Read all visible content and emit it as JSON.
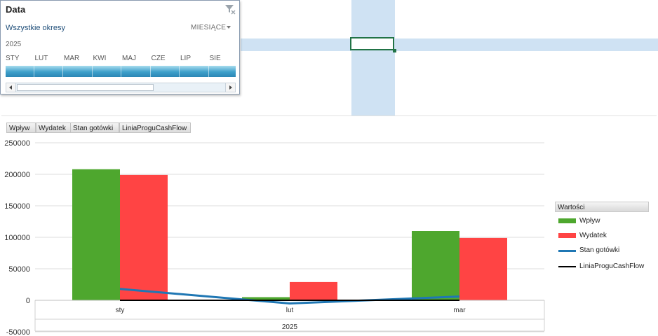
{
  "slicer": {
    "title": "Data",
    "all_periods": "Wszystkie okresy",
    "level": "MIESIĄCE",
    "year": "2025",
    "months": [
      "STY",
      "LUT",
      "MAR",
      "KWI",
      "MAJ",
      "CZE",
      "LIP",
      "SIE"
    ],
    "bar_color": "#3d9fca"
  },
  "field_buttons": [
    "Wpływ",
    "Wydatek",
    "Stan gotówki",
    "LiniaProguCashFlow"
  ],
  "chart_data": {
    "type": "bar",
    "categories": [
      "sty",
      "lut",
      "mar"
    ],
    "group_label": "2025",
    "ylim": [
      -50000,
      250000
    ],
    "yticks": [
      250000,
      200000,
      150000,
      100000,
      50000,
      0,
      -50000
    ],
    "grid": true,
    "legend_title": "Wartości",
    "legend_position": "right",
    "series": [
      {
        "name": "Wpływ",
        "kind": "bar",
        "color": "#4ea72e",
        "values": [
          208000,
          5000,
          110000
        ]
      },
      {
        "name": "Wydatek",
        "kind": "bar",
        "color": "#ff4444",
        "values": [
          199000,
          29000,
          99000
        ]
      },
      {
        "name": "Stan gotówki",
        "kind": "line",
        "color": "#1f77b4",
        "values": [
          18000,
          -5000,
          6000
        ]
      },
      {
        "name": "LiniaProguCashFlow",
        "kind": "line",
        "color": "#000000",
        "values": [
          0,
          0,
          0
        ]
      }
    ]
  }
}
